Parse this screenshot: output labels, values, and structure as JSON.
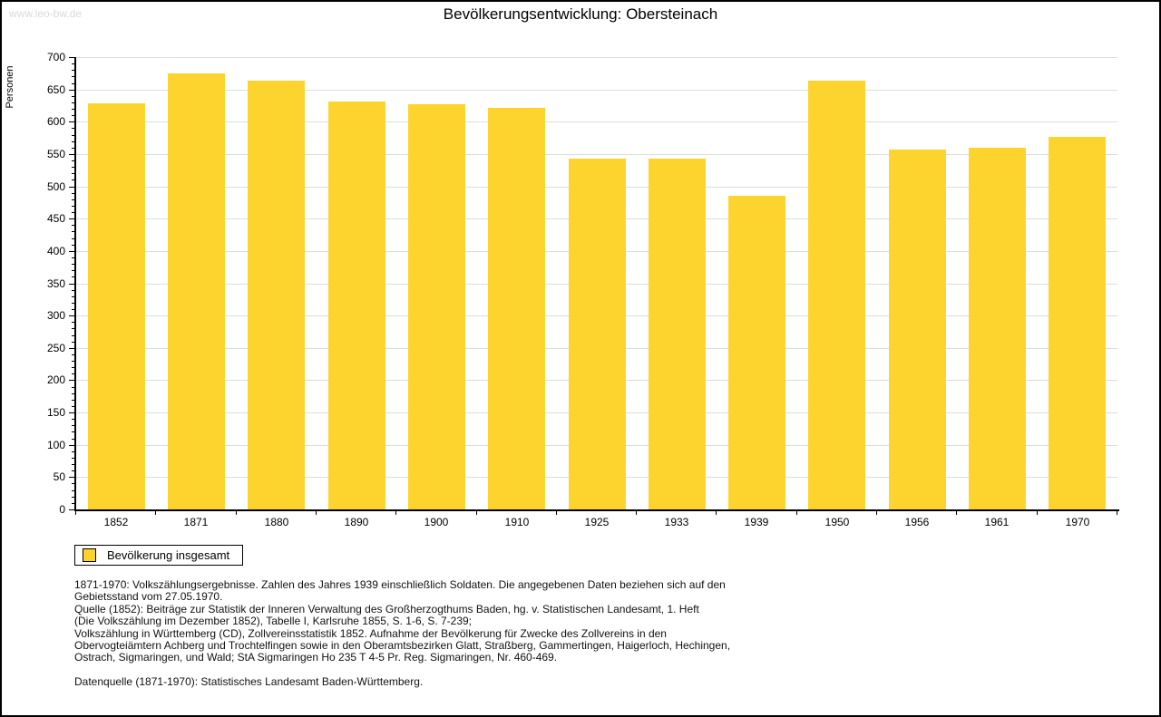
{
  "watermark": "www.leo-bw.de",
  "header": {
    "title": "Bevölkerungsentwicklung: Obersteinach"
  },
  "chart_data": {
    "type": "bar",
    "title": "Bevölkerungsentwicklung: Obersteinach",
    "xlabel": "",
    "ylabel": "Personen",
    "categories": [
      "1852",
      "1871",
      "1880",
      "1890",
      "1900",
      "1910",
      "1925",
      "1933",
      "1939",
      "1950",
      "1956",
      "1961",
      "1970"
    ],
    "values": [
      628,
      675,
      663,
      631,
      627,
      622,
      543,
      543,
      485,
      664,
      557,
      560,
      576
    ],
    "ylim": [
      0,
      700
    ],
    "y_major_step": 50,
    "y_minor_step": 10,
    "grid": true,
    "legend_position": "bottom-left",
    "bar_color": "#FDD32D",
    "grid_color": "#DCDCDC"
  },
  "legend": {
    "label": "Bevölkerung insgesamt"
  },
  "footnotes": {
    "lines": [
      "1871-1970: Volkszählungsergebnisse. Zahlen des Jahres 1939 einschließlich Soldaten. Die angegebenen Daten beziehen sich auf den",
      "Gebietsstand vom 27.05.1970.",
      "Quelle (1852): Beiträge zur Statistik der Inneren Verwaltung des Großherzogthums Baden, hg. v. Statistischen Landesamt, 1. Heft",
      "(Die Volkszählung im Dezember 1852), Tabelle I, Karlsruhe 1855, S. 1-6, S. 7-239;",
      "Volkszählung in Württemberg (CD), Zollvereinsstatistik 1852. Aufnahme der Bevölkerung für Zwecke des Zollvereins in den",
      "Obervogteiämtern Achberg und Trochtelfingen sowie in den Oberamtsbezirken Glatt, Straßberg, Gammertingen, Haigerloch, Hechingen,",
      "Ostrach, Sigmaringen, und Wald; StA Sigmaringen Ho 235 T 4-5 Pr. Reg. Sigmaringen, Nr. 460-469.",
      "",
      "Datenquelle (1871-1970): Statistisches Landesamt Baden-Württemberg."
    ]
  },
  "colors": {
    "bar": "#FDD32D",
    "grid": "#DCDCDC",
    "watermark": "#D9D9D9",
    "axis": "#000000"
  }
}
